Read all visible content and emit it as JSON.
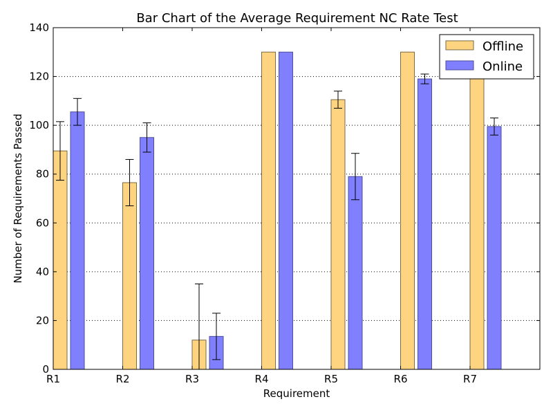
{
  "chart_data": {
    "type": "bar",
    "title": "Bar Chart of the Average Requirement NC Rate Test",
    "xlabel": "Requirement",
    "ylabel": "Number of Requirements Passed",
    "categories": [
      "R1",
      "R2",
      "R3",
      "R4",
      "R5",
      "R6",
      "R7"
    ],
    "ylim": [
      0,
      140
    ],
    "yticks": [
      0,
      20,
      40,
      60,
      80,
      100,
      120,
      140
    ],
    "grid": "horizontal dotted",
    "legend_position": "top-right",
    "series": [
      {
        "name": "Offline",
        "color": "#ffd480",
        "values": [
          89.5,
          76.5,
          12,
          130,
          110.5,
          130,
          122
        ],
        "errors": [
          12,
          9.5,
          23,
          0,
          3.5,
          0,
          0
        ]
      },
      {
        "name": "Online",
        "color": "#8080ff",
        "values": [
          105.5,
          95,
          13.5,
          130,
          79,
          119,
          99.5
        ],
        "errors": [
          5.5,
          6,
          9.5,
          0,
          9.5,
          2,
          3.5
        ]
      }
    ]
  }
}
